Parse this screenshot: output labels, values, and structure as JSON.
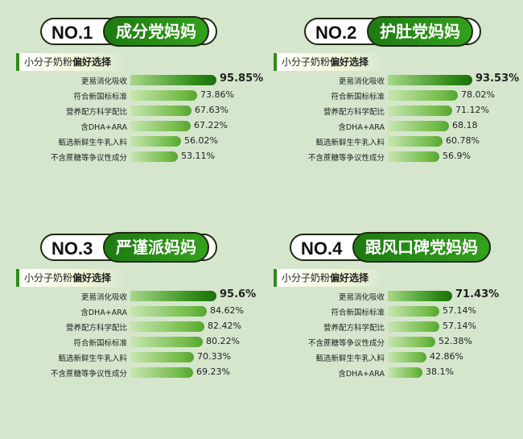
{
  "chart_data": [
    {
      "type": "bar",
      "rank": "NO.1",
      "title": "成分党妈妈",
      "subtitle_prefix": "小分子奶粉",
      "subtitle_bold": "偏好选择",
      "categories": [
        "更易消化吸收",
        "符合新国标标准",
        "营养配方科学配比",
        "含DHA+ARA",
        "甄选新鲜生牛乳入料",
        "不含蔗糖等争议性成分"
      ],
      "value_labels": [
        "95.85%",
        "73.86%",
        "67.63%",
        "67.22%",
        "56.02%",
        "53.11%"
      ],
      "values": [
        95.85,
        73.86,
        67.63,
        67.22,
        56.02,
        53.11
      ]
    },
    {
      "type": "bar",
      "rank": "NO.2",
      "title": "护肚党妈妈",
      "subtitle_prefix": "小分子奶粉",
      "subtitle_bold": "偏好选择",
      "categories": [
        "更易消化吸收",
        "符合新国标标准",
        "营养配方科学配比",
        "含DHA+ARA",
        "甄选新鲜生牛乳入料",
        "不含蔗糖等争议性成分"
      ],
      "value_labels": [
        "93.53%",
        "78.02%",
        "71.12%",
        "68.18",
        "60.78%",
        "56.9%"
      ],
      "values": [
        93.53,
        78.02,
        71.12,
        68.18,
        60.78,
        56.9
      ]
    },
    {
      "type": "bar",
      "rank": "NO.3",
      "title": "严谨派妈妈",
      "subtitle_prefix": "小分子奶粉",
      "subtitle_bold": "偏好选择",
      "categories": [
        "更易消化吸收",
        "含DHA+ARA",
        "营养配方科学配比",
        "符合新国标标准",
        "甄选新鲜生牛乳入料",
        "不含蔗糖等争议性成分"
      ],
      "value_labels": [
        "95.6%",
        "84.62%",
        "82.42%",
        "80.22%",
        "70.33%",
        "69.23%"
      ],
      "values": [
        95.6,
        84.62,
        82.42,
        80.22,
        70.33,
        69.23
      ]
    },
    {
      "type": "bar",
      "rank": "NO.4",
      "title": "跟风口碑党妈妈",
      "subtitle_prefix": "小分子奶粉",
      "subtitle_bold": "偏好选择",
      "categories": [
        "更易消化吸收",
        "符合新国标标准",
        "营养配方科学配比",
        "不含蔗糖等争议性成分",
        "甄选新鲜生牛乳入料",
        "含DHA+ARA"
      ],
      "value_labels": [
        "71.43%",
        "57.14%",
        "57.14%",
        "52.38%",
        "42.86%",
        "38.1%"
      ],
      "values": [
        71.43,
        57.14,
        57.14,
        52.38,
        42.86,
        38.1
      ]
    }
  ]
}
